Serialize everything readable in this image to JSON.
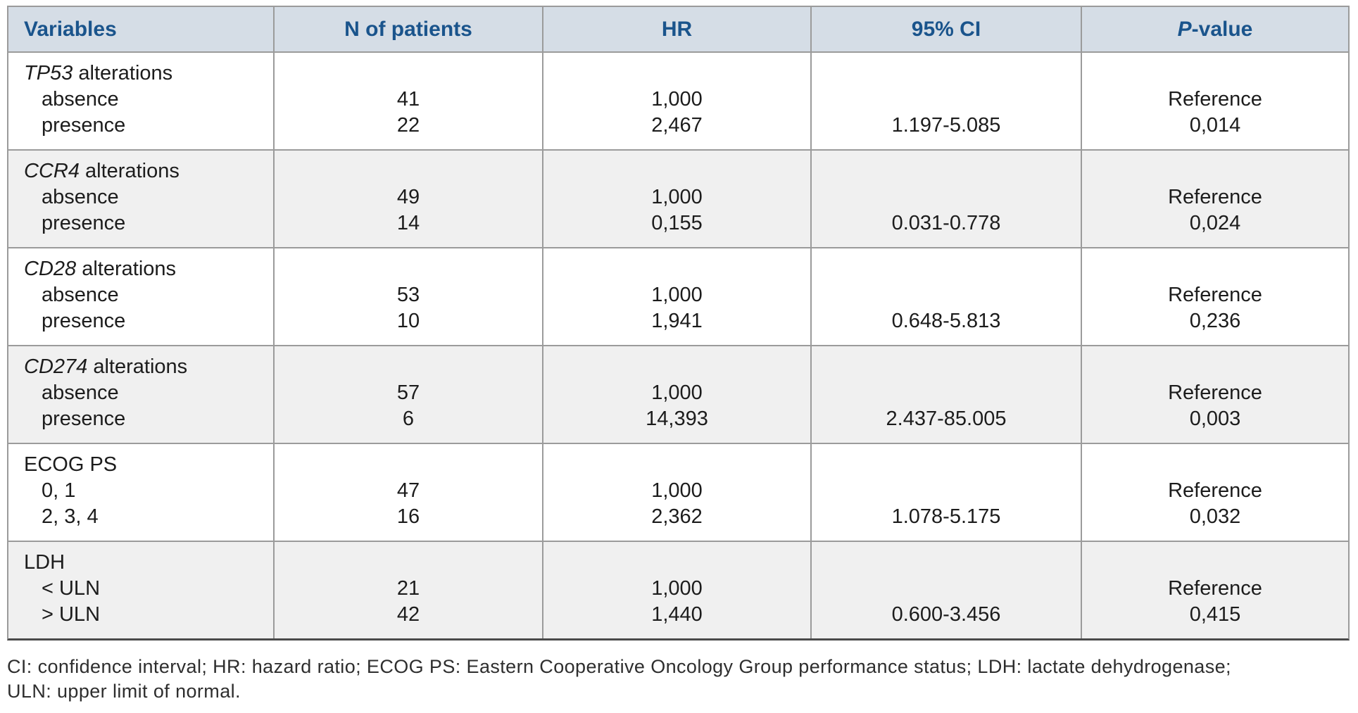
{
  "table": {
    "headers": {
      "variables": "Variables",
      "n_of_patients": "N of patients",
      "hr": "HR",
      "ci": "95% CI",
      "p_italic": "P",
      "p_rest": "-value"
    },
    "rows": [
      {
        "gene": "TP53",
        "label_rest": " alterations",
        "sub1": "absence",
        "sub2": "presence",
        "n1": "41",
        "n2": "22",
        "hr1": "1,000",
        "hr2": "2,467",
        "ci2": "1.197-5.085",
        "p1": "Reference",
        "p2": "0,014"
      },
      {
        "gene": "CCR4",
        "label_rest": " alterations",
        "sub1": "absence",
        "sub2": "presence",
        "n1": "49",
        "n2": "14",
        "hr1": "1,000",
        "hr2": "0,155",
        "ci2": "0.031-0.778",
        "p1": "Reference",
        "p2": "0,024"
      },
      {
        "gene": "CD28",
        "label_rest": " alterations",
        "sub1": "absence",
        "sub2": "presence",
        "n1": "53",
        "n2": "10",
        "hr1": "1,000",
        "hr2": "1,941",
        "ci2": "0.648-5.813",
        "p1": "Reference",
        "p2": "0,236"
      },
      {
        "gene": "CD274",
        "label_rest": " alterations",
        "sub1": "absence",
        "sub2": "presence",
        "n1": "57",
        "n2": "6",
        "hr1": "1,000",
        "hr2": "14,393",
        "ci2": "2.437-85.005",
        "p1": "Reference",
        "p2": "0,003"
      },
      {
        "gene": "",
        "label_rest": "ECOG PS",
        "sub1": "0, 1",
        "sub2": "2, 3, 4",
        "n1": "47",
        "n2": "16",
        "hr1": "1,000",
        "hr2": "2,362",
        "ci2": "1.078-5.175",
        "p1": "Reference",
        "p2": "0,032"
      },
      {
        "gene": "",
        "label_rest": "LDH",
        "sub1": "< ULN",
        "sub2": "> ULN",
        "n1": "21",
        "n2": "42",
        "hr1": "1,000",
        "hr2": "1,440",
        "ci2": "0.600-3.456",
        "p1": "Reference",
        "p2": "0,415"
      }
    ],
    "colors": {
      "header_background": "#d5dde6",
      "header_text": "#1a548c",
      "shaded_row_background": "#f0f0f0",
      "border": "#9b9b9b",
      "bottom_border": "#4a4a4a",
      "body_text": "#1c1c1c"
    }
  },
  "footnote": {
    "line1": "CI: confidence interval; HR: hazard ratio; ECOG PS: Eastern Cooperative Oncology Group performance status; LDH: lactate dehydrogenase;",
    "line2": "ULN: upper limit of normal."
  }
}
